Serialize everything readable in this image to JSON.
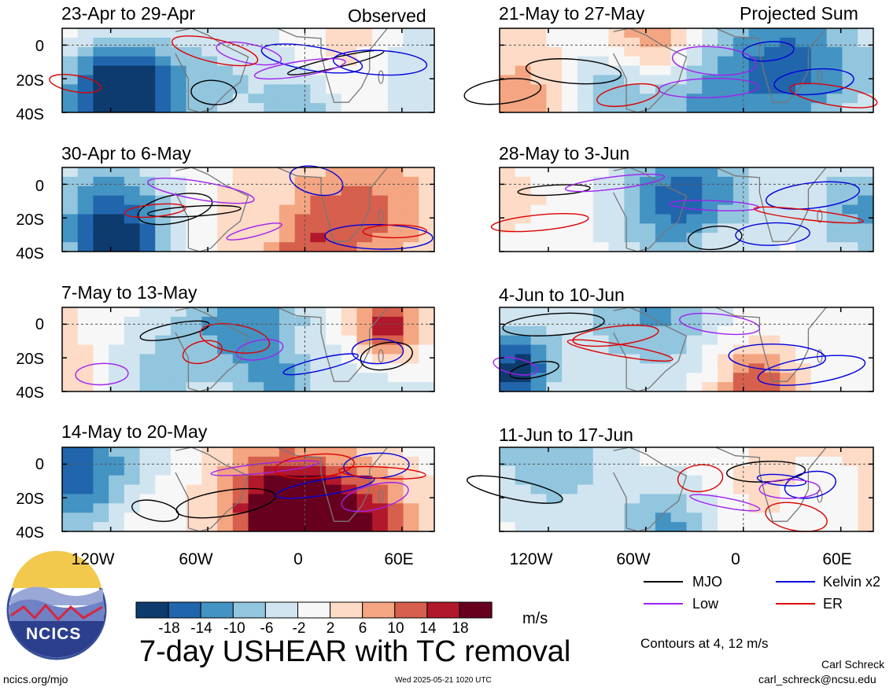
{
  "chart_data": {
    "type": "heatmap",
    "title": "7-day USHEAR with TC removal",
    "variable": "USHEAR",
    "units": "m/s",
    "observed_label": "Observed",
    "projected_label": "Projected Sum",
    "panels": [
      {
        "id": "obs1",
        "title": "23-Apr to 29-Apr",
        "column": "observed"
      },
      {
        "id": "obs2",
        "title": "30-Apr to 6-May",
        "column": "observed"
      },
      {
        "id": "obs3",
        "title": "7-May to 13-May",
        "column": "observed"
      },
      {
        "id": "obs4",
        "title": "14-May to 20-May",
        "column": "observed"
      },
      {
        "id": "prj1",
        "title": "21-May to 27-May",
        "column": "projected"
      },
      {
        "id": "prj2",
        "title": "28-May to 3-Jun",
        "column": "projected"
      },
      {
        "id": "prj3",
        "title": "4-Jun to 10-Jun",
        "column": "projected"
      },
      {
        "id": "prj4",
        "title": "11-Jun to 17-Jun",
        "column": "projected"
      }
    ],
    "x_axis": {
      "ticks": [
        "120W",
        "60W",
        "0",
        "60E"
      ],
      "tick_values": [
        -120,
        -60,
        0,
        60
      ],
      "range": [
        -150,
        80
      ]
    },
    "y_axis": {
      "ticks": [
        "0",
        "20S",
        "40S"
      ],
      "tick_values": [
        0,
        -20,
        -40
      ],
      "range": [
        -40,
        10
      ]
    },
    "colorbar": {
      "ticks": [
        "-18",
        "-14",
        "-10",
        "-6",
        "-2",
        "2",
        "6",
        "10",
        "14",
        "18"
      ],
      "colors": [
        "#0d3b6e",
        "#2166ac",
        "#4393c3",
        "#92c5de",
        "#d1e5f0",
        "#f7f7f7",
        "#fddbc7",
        "#f4a582",
        "#d6604d",
        "#b2182b",
        "#67001f"
      ]
    },
    "contour_note": "Contours at 4, 12 m/s",
    "contour_levels": [
      4,
      12
    ],
    "legend": [
      {
        "label": "MJO",
        "color": "#000000"
      },
      {
        "label": "Kelvin x2",
        "color": "#0000dd"
      },
      {
        "label": "Low",
        "color": "#a020f0"
      },
      {
        "label": "ER",
        "color": "#dd0000"
      }
    ],
    "grid": "dashed lines at equator and 0 longitude"
  },
  "logo": {
    "text": "NCICS"
  },
  "footer": {
    "left": "ncics.org/mjo",
    "center": "Wed 2025-05-21 1020 UTC",
    "author": "Carl Schreck",
    "email": "carl_schreck@ncsu.edu"
  }
}
